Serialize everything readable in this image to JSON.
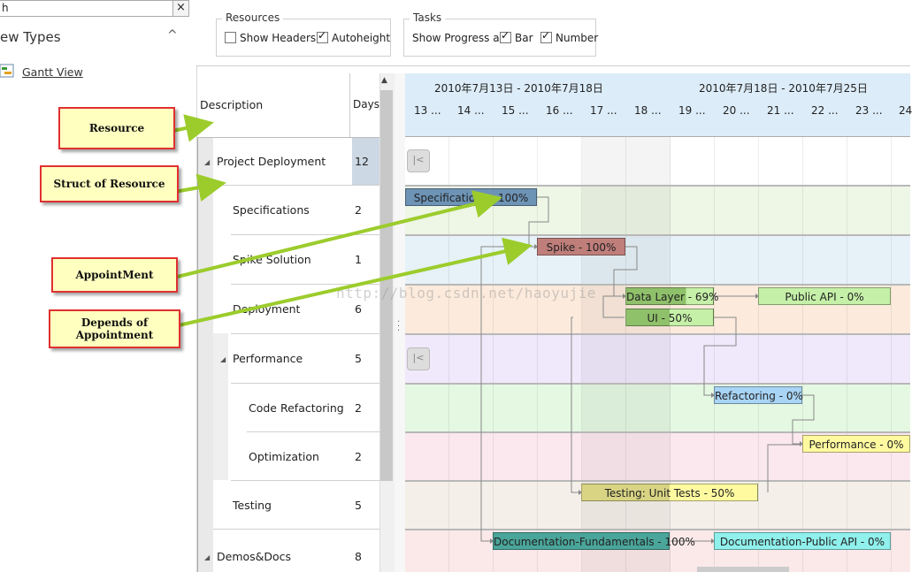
{
  "nav": {
    "search_value": "h",
    "clear_label": "×",
    "title": "ew Types",
    "collapse_glyph": "^",
    "items": [
      {
        "label": "Gantt View"
      }
    ]
  },
  "ribbon": {
    "resources": {
      "title": "Resources",
      "options": [
        {
          "label": "Show Headers",
          "checked": false
        },
        {
          "label": "Autoheight",
          "checked": true
        }
      ]
    },
    "tasks": {
      "title": "Tasks",
      "progress_label": "Show Progress as",
      "options": [
        {
          "label": "Bar",
          "checked": true
        },
        {
          "label": "Number",
          "checked": true
        }
      ]
    }
  },
  "grid": {
    "columns": {
      "description": "Description",
      "days": "Days"
    },
    "rows": [
      {
        "name": "Project Deployment",
        "days": "12",
        "group": true
      },
      {
        "name": "Specifications",
        "days": "2"
      },
      {
        "name": "Spike Solution",
        "days": "1"
      },
      {
        "name": "Deployment",
        "days": "6"
      },
      {
        "name": "Performance",
        "days": "5",
        "group": true
      },
      {
        "name": "Code Refactoring",
        "days": "2"
      },
      {
        "name": "Optimization",
        "days": "2"
      },
      {
        "name": "Testing",
        "days": "5"
      },
      {
        "name": "Demos&Docs",
        "days": "8",
        "group": true
      }
    ]
  },
  "timeline": {
    "weeks": [
      "2010年7月13日 - 2010年7月18日",
      "2010年7月18日 - 2010年7月25日"
    ],
    "days": [
      "13 ...",
      "14 ...",
      "15 ...",
      "16 ...",
      "17 ...",
      "18 ...",
      "19 ...",
      "20 ...",
      "21 ...",
      "22 ...",
      "23 ...",
      "24"
    ],
    "collapse_glyph": "|<",
    "tasks": [
      {
        "label": "Specifications - 100%",
        "color": "#6d93b5"
      },
      {
        "label": "Spike - 100%",
        "color": "#bf7e7a"
      },
      {
        "label": "Data Layer - 69%",
        "color": "#8fc06a"
      },
      {
        "label": "UI - 50%",
        "color": "#8fc06a"
      },
      {
        "label": "Public API - 0%",
        "color": "#c5f0a8"
      },
      {
        "label": "Refactoring - 0%",
        "color": "#a8d4f5"
      },
      {
        "label": "Performance - 0%",
        "color": "#fffaa0"
      },
      {
        "label": "Testing: Unit Tests - 50%",
        "color": "#d8d484"
      },
      {
        "label": "Documentation-Fundamentals - 100%",
        "color": "#4aa59a"
      },
      {
        "label": "Documentation-Public API - 0%",
        "color": "#8ff0ec"
      }
    ]
  },
  "callouts": [
    {
      "text": "Resource"
    },
    {
      "text": "Struct of Resource"
    },
    {
      "text": "AppointMent"
    },
    {
      "text": "Depends of Appointment"
    }
  ],
  "watermark": "http://blog.csdn.net/haoyujie"
}
